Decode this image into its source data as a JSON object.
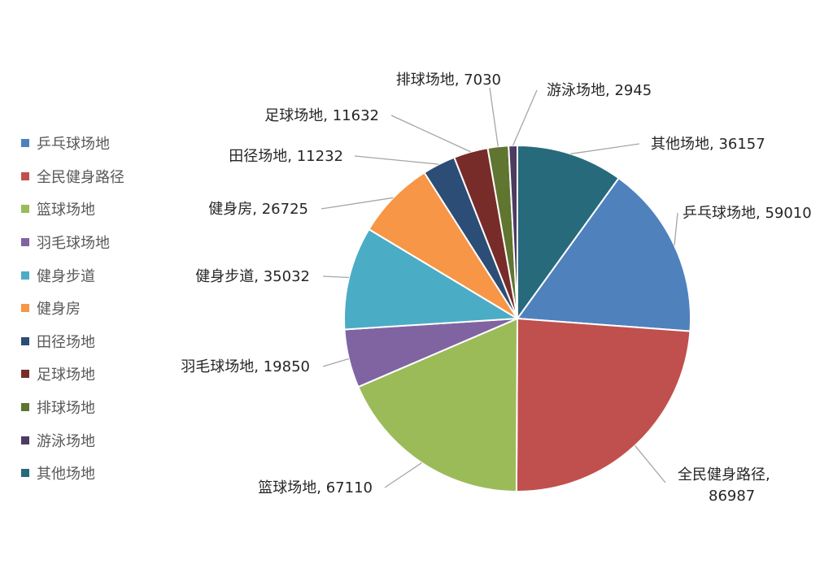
{
  "chart_data": {
    "type": "pie",
    "title": "",
    "start_angle_deg": 0,
    "direction": "clockwise",
    "legend_position": "left",
    "slices": [
      {
        "name": "乒乓球场地",
        "value": 59010,
        "label": "乒乓球场地, 59010",
        "color": "#4f81bd"
      },
      {
        "name": "全民健身路径",
        "value": 86987,
        "label": "全民健身路径, 86987",
        "label_lines": [
          "全民健身路径,",
          "86987"
        ],
        "color": "#c0504d"
      },
      {
        "name": "篮球场地",
        "value": 67110,
        "label": "篮球场地, 67110",
        "color": "#9bbb59"
      },
      {
        "name": "羽毛球场地",
        "value": 19850,
        "label": "羽毛球场地, 19850",
        "color": "#8064a2"
      },
      {
        "name": "健身步道",
        "value": 35032,
        "label": "健身步道, 35032",
        "color": "#4bacc6"
      },
      {
        "name": "健身房",
        "value": 26725,
        "label": "健身房, 26725",
        "color": "#f79646"
      },
      {
        "name": "田径场地",
        "value": 11232,
        "label": "田径场地, 11232",
        "color": "#2c4d75"
      },
      {
        "name": "足球场地",
        "value": 11632,
        "label": "足球场地, 11632",
        "color": "#772c2a"
      },
      {
        "name": "排球场地",
        "value": 7030,
        "label": "排球场地, 7030",
        "color": "#5f7530"
      },
      {
        "name": "游泳场地",
        "value": 2945,
        "label": "游泳场地, 2945",
        "color": "#4d3b62"
      },
      {
        "name": "其他场地",
        "value": 36157,
        "label": "其他场地, 36157",
        "color": "#276a7c"
      }
    ]
  }
}
